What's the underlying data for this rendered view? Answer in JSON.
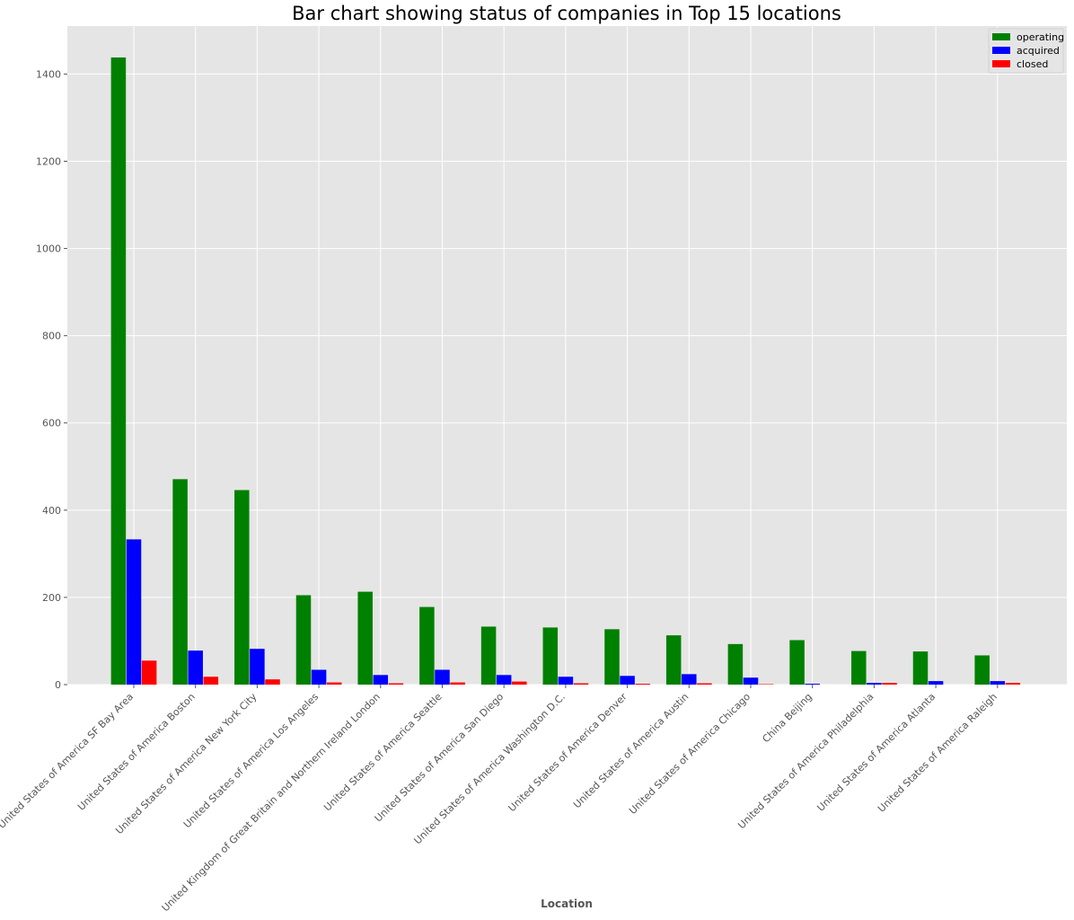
{
  "chart_data": {
    "type": "bar",
    "title": "Bar chart showing status of companies in Top 15 locations",
    "xlabel": "Location",
    "ylabel": "",
    "ylim": [
      0,
      1510
    ],
    "yticks": [
      0,
      200,
      400,
      600,
      800,
      1000,
      1200,
      1400
    ],
    "grid": true,
    "legend_position": "top-right",
    "categories": [
      "United States of America  SF Bay Area",
      "United States of America  Boston",
      "United States of America  New York City",
      "United States of America  Los Angeles",
      "United Kingdom of Great Britain and Northern Ireland  London",
      "United States of America  Seattle",
      "United States of America  San Diego",
      "United States of America  Washington D.C.",
      "United States of America  Denver",
      "United States of America  Austin",
      "United States of America  Chicago",
      "China  Beijing",
      "United States of America  Philadelphia",
      "United States of America  Atlanta",
      "United States of America  Raleigh"
    ],
    "series": [
      {
        "name": "operating",
        "color": "#008000",
        "values": [
          1438,
          471,
          446,
          205,
          213,
          178,
          133,
          131,
          127,
          113,
          93,
          102,
          77,
          76,
          67
        ]
      },
      {
        "name": "acquired",
        "color": "#0000ff",
        "values": [
          333,
          78,
          82,
          34,
          22,
          34,
          22,
          18,
          20,
          24,
          16,
          2,
          4,
          8,
          8
        ]
      },
      {
        "name": "closed",
        "color": "#ff0000",
        "values": [
          55,
          18,
          12,
          5,
          3,
          5,
          7,
          3,
          2,
          3,
          1,
          0,
          4,
          0,
          4
        ]
      }
    ]
  }
}
